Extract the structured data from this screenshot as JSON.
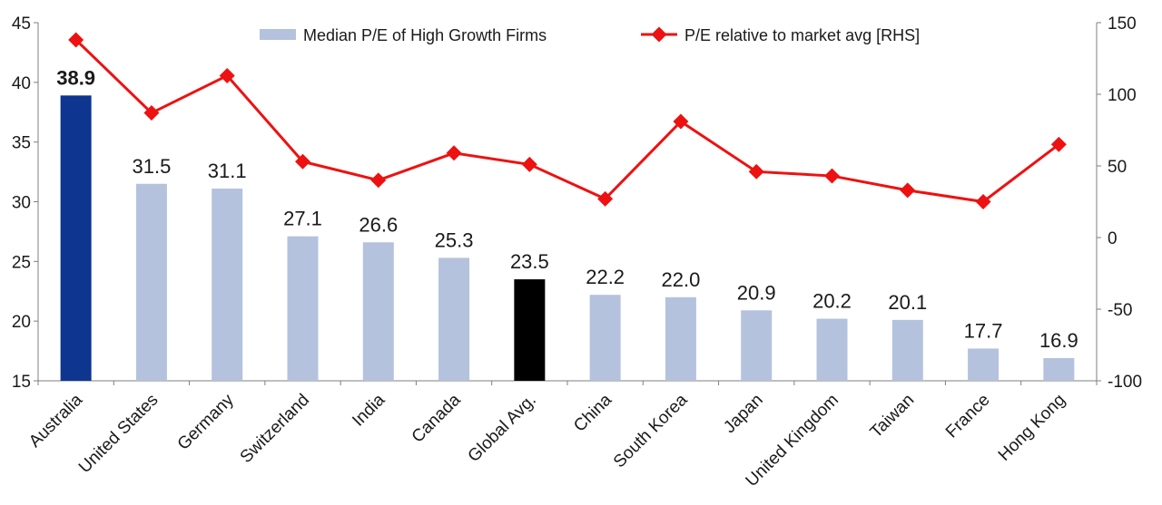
{
  "chart_data": {
    "type": "bar+line",
    "categories": [
      "Australia",
      "United States",
      "Germany",
      "Switzerland",
      "India",
      "Canada",
      "Global Avg.",
      "China",
      "South Korea",
      "Japan",
      "United Kingdom",
      "Taiwan",
      "France",
      "Hong Kong"
    ],
    "series": [
      {
        "name": "Median P/E of High Growth Firms",
        "type": "bar",
        "axis": "left",
        "values": [
          38.9,
          31.5,
          31.1,
          27.1,
          26.6,
          25.3,
          23.5,
          22.2,
          22.0,
          20.9,
          20.2,
          20.1,
          17.7,
          16.9
        ],
        "labels": [
          "38.9",
          "31.5",
          "31.1",
          "27.1",
          "26.6",
          "25.3",
          "23.5",
          "22.2",
          "22.0",
          "20.9",
          "20.2",
          "20.1",
          "17.7",
          "16.9"
        ],
        "color": "#b4c2dd",
        "highlight_colors": {
          "Australia": "#0e3590",
          "Global Avg.": "#000000"
        }
      },
      {
        "name": "P/E relative to market avg [RHS]",
        "type": "line",
        "axis": "right",
        "values": [
          138,
          87,
          113,
          53,
          40,
          59,
          51,
          27,
          81,
          46,
          43,
          33,
          25,
          65
        ],
        "color": "#ee1111"
      }
    ],
    "left_axis": {
      "min": 15,
      "max": 45,
      "ticks": [
        "15",
        "20",
        "25",
        "30",
        "35",
        "40",
        "45"
      ]
    },
    "right_axis": {
      "min": -100,
      "max": 150,
      "ticks": [
        "-100",
        "-50",
        "0",
        "50",
        "100",
        "150"
      ]
    },
    "grid": false,
    "legend_position": "top"
  }
}
